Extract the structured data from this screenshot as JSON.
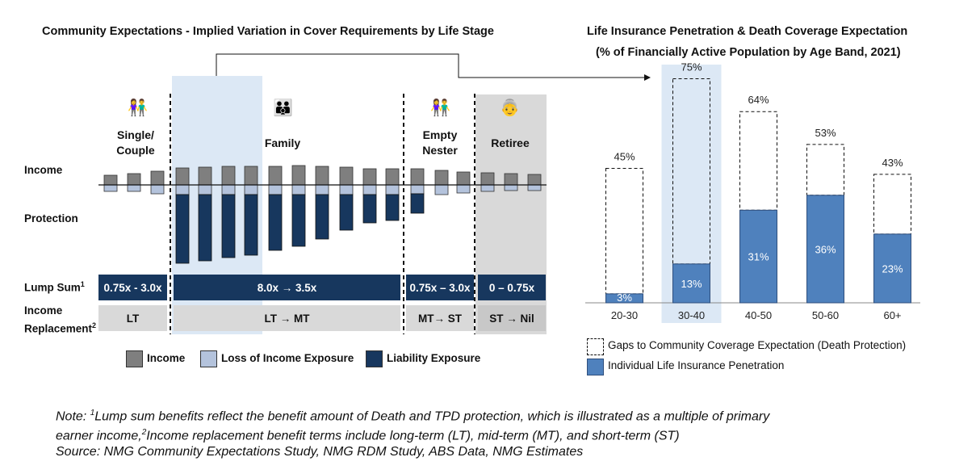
{
  "left": {
    "title": "Community Expectations - Implied Variation in Cover Requirements by Life Stage",
    "stages": {
      "single": "Single/\nCouple",
      "family": "Family",
      "empty": "Empty\nNester",
      "retiree": "Retiree"
    },
    "row_labels": {
      "income": "Income",
      "protection": "Protection",
      "lump_sum": "Lump Sum",
      "lump_sup": "1",
      "income_repl_1": "Income",
      "income_repl_2": "Replacement",
      "repl_sup": "2"
    },
    "lump_sum": {
      "single": "0.75x - 3.0x",
      "family": "8.0x → 3.5x",
      "empty": "0.75x – 3.0x",
      "retiree": "0 – 0.75x"
    },
    "income_replacement": {
      "single": "LT",
      "family": "LT → MT",
      "empty": "MT→ ST",
      "retiree": "ST → Nil"
    },
    "legend": {
      "income": "Income",
      "loss": "Loss of Income Exposure",
      "liability": "Liability Exposure"
    },
    "colors": {
      "income": "#7f7f7f",
      "loss": "#b4c3dc",
      "liability": "#17375e",
      "family_highlight": "#dce8f5",
      "retiree_bg": "#d9d9d9"
    },
    "icons": {
      "single": "couple-icon",
      "family": "family-icon",
      "empty": "couple-icon",
      "retiree": "elderly-couple-icon"
    }
  },
  "chart_data": {
    "type": "bar",
    "title": "Life Insurance Penetration & Death Coverage Expectation",
    "subtitle": "(% of Financially Active Population by Age Band, 2021)",
    "categories": [
      "20-30",
      "30-40",
      "40-50",
      "50-60",
      "60+"
    ],
    "series": [
      {
        "name": "Individual Life Insurance Penetration",
        "values": [
          3,
          13,
          31,
          36,
          23
        ],
        "labels": [
          "3%",
          "13%",
          "31%",
          "36%",
          "23%"
        ],
        "color": "#4f81bd"
      },
      {
        "name": "Gaps to Community Coverage Expectation (Death Protection)",
        "totals": [
          45,
          75,
          64,
          53,
          43
        ],
        "total_labels": [
          "45%",
          "75%",
          "64%",
          "53%",
          "43%"
        ],
        "style": "dashed-outline"
      }
    ],
    "highlight_category": "30-40",
    "ylim": [
      0,
      80
    ],
    "xlabel": "",
    "ylabel": ""
  },
  "note": {
    "line1_pre": "Note: ",
    "sup1": "1",
    "line1_post": "Lump sum benefits reflect the benefit amount of Death and TPD protection, which is illustrated as a multiple of primary",
    "line2_pre": "earner income,",
    "sup2": "2",
    "line2_post": "Income replacement benefit terms include long-term (LT), mid-term (MT), and short-term (ST)",
    "source": "Source: NMG Community Expectations Study, NMG RDM Study, ABS Data, NMG Estimates"
  }
}
